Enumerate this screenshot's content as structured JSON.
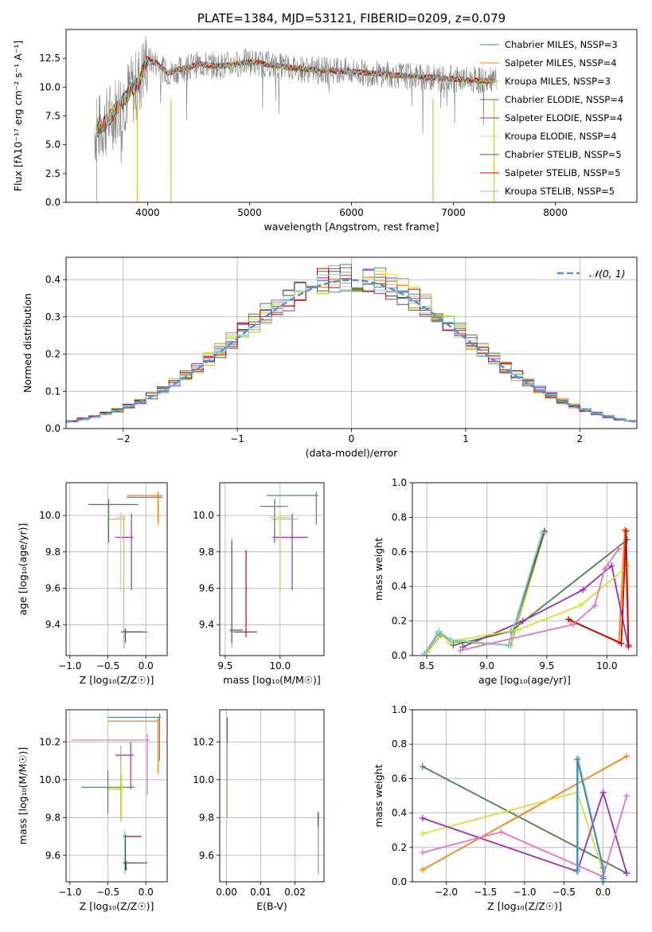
{
  "legend_colors": {
    "Chabrier MILES": "#4a7fb0",
    "Salpeter MILES": "#ff7f0e",
    "Kroupa MILES": "#bcbd22",
    "Chabrier ELODIE": "#4f7f4f",
    "Salpeter ELODIE": "#9b30b0",
    "Kroupa ELODIE": "#d6e040",
    "Chabrier STELIB": "#555555",
    "Salpeter STELIB": "#cc0000",
    "Kroupa STELIB": "#7fd3d3",
    "gauss": "#5b8fd6"
  },
  "chart_data": [
    {
      "id": "spectrum",
      "type": "line",
      "title": "PLATE=1384, MJD=53121, FIBERID=0209, z=0.079",
      "xlabel": "wavelength [Angstrom, rest frame]",
      "ylabel": "Flux [fλ10⁻¹⁷ erg cm⁻² s⁻¹ A⁻¹]",
      "xlim": [
        3200,
        8800
      ],
      "ylim": [
        0,
        15
      ],
      "xticks": [
        "4000",
        "5000",
        "6000",
        "7000",
        "8000"
      ],
      "yticks": [
        "0.0",
        "2.5",
        "5.0",
        "7.5",
        "10.0",
        "12.5"
      ],
      "legend_position": "top-right",
      "legend": [
        {
          "label": "Chabrier MILES, NSSP=3",
          "key": "Chabrier MILES"
        },
        {
          "label": "Salpeter MILES, NSSP=4",
          "key": "Salpeter MILES"
        },
        {
          "label": "Kroupa MILES, NSSP=3",
          "key": "Kroupa MILES"
        },
        {
          "label": "Chabrier ELODIE, NSSP=4",
          "key": "Chabrier ELODIE"
        },
        {
          "label": "Salpeter ELODIE, NSSP=4",
          "key": "Salpeter ELODIE"
        },
        {
          "label": "Kroupa ELODIE, NSSP=4",
          "key": "Kroupa ELODIE"
        },
        {
          "label": "Chabrier STELIB, NSSP=5",
          "key": "Chabrier STELIB"
        },
        {
          "label": "Salpeter STELIB, NSSP=5",
          "key": "Salpeter STELIB"
        },
        {
          "label": "Kroupa STELIB, NSSP=5",
          "key": "Kroupa STELIB"
        }
      ],
      "data_x": [
        3500,
        3600,
        3700,
        3800,
        3900,
        4000,
        4100,
        4200,
        4300,
        4500,
        4700,
        5000,
        5300,
        5600,
        5900,
        6200,
        6500,
        6800,
        7000,
        7200,
        7400
      ],
      "data_y": [
        6.2,
        7.0,
        8.2,
        9.3,
        10.2,
        12.4,
        12.0,
        11.2,
        11.5,
        12.0,
        11.8,
        12.2,
        11.8,
        11.5,
        11.4,
        11.2,
        11.0,
        10.8,
        10.7,
        10.6,
        10.5
      ]
    },
    {
      "id": "residuals",
      "type": "line",
      "xlabel": "(data-model)/error",
      "ylabel": "Normed distribution",
      "xlim": [
        -2.5,
        2.5
      ],
      "ylim": [
        0,
        0.46
      ],
      "xticks": [
        "−2",
        "−1",
        "0",
        "1",
        "2"
      ],
      "yticks": [
        "0.0",
        "0.1",
        "0.2",
        "0.3",
        "0.4"
      ],
      "legend_position": "top-right",
      "legend": [
        {
          "label": "𝒩(0, 1)",
          "key": "gauss"
        }
      ],
      "gauss_mean": 0,
      "gauss_sigma": 1
    },
    {
      "id": "age_vs_Z",
      "type": "scatter",
      "xlabel": "Z [log₁₀(Z/Z☉)]",
      "ylabel": "age [log₁₀(age/yr)]",
      "xlim": [
        -1.05,
        0.28
      ],
      "ylim": [
        9.23,
        10.18
      ],
      "xticks": [
        "−1.0",
        "−0.5",
        "0.0"
      ],
      "yticks": [
        "9.4",
        "9.6",
        "9.8",
        "10.0"
      ],
      "points": [
        {
          "key": "Chabrier MILES",
          "x": 0.16,
          "y": 10.1,
          "xlo": -0.25,
          "xhi": 0.22,
          "ylo": 9.97,
          "yhi": 10.13
        },
        {
          "key": "Chabrier MILES",
          "x": -0.29,
          "y": 9.36,
          "xlo": -0.32,
          "xhi": -0.25,
          "ylo": 9.27,
          "yhi": 9.37
        },
        {
          "key": "Salpeter MILES",
          "x": 0.16,
          "y": 10.11,
          "xlo": -0.25,
          "xhi": 0.22,
          "ylo": 9.95,
          "yhi": 10.13
        },
        {
          "key": "Kroupa MILES",
          "x": -0.29,
          "y": 9.98,
          "xlo": -0.5,
          "xhi": -0.27,
          "ylo": 9.58,
          "yhi": 10.0
        },
        {
          "key": "Chabrier ELODIE",
          "x": -0.49,
          "y": 10.06,
          "xlo": -0.76,
          "xhi": -0.1,
          "ylo": 9.85,
          "yhi": 10.09
        },
        {
          "key": "Salpeter ELODIE",
          "x": -0.19,
          "y": 9.88,
          "xlo": -0.4,
          "xhi": -0.17,
          "ylo": 9.59,
          "yhi": 10.01
        },
        {
          "key": "Kroupa ELODIE",
          "x": -0.33,
          "y": 9.99,
          "xlo": -0.37,
          "xhi": -0.29,
          "ylo": 9.58,
          "yhi": 10.02
        },
        {
          "key": "Salpeter STELIB",
          "x": -0.29,
          "y": 9.36,
          "xlo": -0.33,
          "xhi": -0.05,
          "ylo": 9.33,
          "yhi": 9.37
        },
        {
          "key": "Kroupa STELIB",
          "x": -0.29,
          "y": 9.36,
          "xlo": -0.31,
          "xhi": -0.27,
          "ylo": 9.27,
          "yhi": 9.88
        },
        {
          "key": "Chabrier STELIB",
          "x": -0.27,
          "y": 9.36,
          "xlo": -0.3,
          "xhi": 0.02,
          "ylo": 9.3,
          "yhi": 9.38
        }
      ]
    },
    {
      "id": "age_vs_mass",
      "type": "scatter",
      "xlabel": "mass [log₁₀(M/M☉)]",
      "xlim": [
        9.45,
        10.4
      ],
      "ylim": [
        9.23,
        10.18
      ],
      "xticks": [
        "9.5",
        "10.0"
      ],
      "yticks": [
        "9.4",
        "9.6",
        "9.8",
        "10.0"
      ],
      "points": [
        {
          "key": "Chabrier MILES",
          "x": 10.33,
          "y": 10.11,
          "xlo": 9.88,
          "xhi": 10.35,
          "ylo": 9.95,
          "yhi": 10.13
        },
        {
          "key": "Kroupa MILES",
          "x": 10.0,
          "y": 9.98,
          "xlo": 9.92,
          "xhi": 10.16,
          "ylo": 9.58,
          "yhi": 10.0
        },
        {
          "key": "Chabrier ELODIE",
          "x": 9.95,
          "y": 10.05,
          "xlo": 9.82,
          "xhi": 10.07,
          "ylo": 9.85,
          "yhi": 10.09
        },
        {
          "key": "Salpeter ELODIE",
          "x": 10.11,
          "y": 9.88,
          "xlo": 9.93,
          "xhi": 10.25,
          "ylo": 9.59,
          "yhi": 10.01
        },
        {
          "key": "Kroupa ELODIE",
          "x": 10.0,
          "y": 9.99,
          "xlo": 9.9,
          "xhi": 10.1,
          "ylo": 9.58,
          "yhi": 10.02
        },
        {
          "key": "Salpeter STELIB",
          "x": 9.69,
          "y": 9.36,
          "xlo": 9.55,
          "xhi": 9.79,
          "ylo": 9.33,
          "yhi": 9.81
        },
        {
          "key": "Kroupa STELIB",
          "x": 9.56,
          "y": 9.36,
          "xlo": 9.54,
          "xhi": 9.58,
          "ylo": 9.27,
          "yhi": 9.88
        },
        {
          "key": "Chabrier STELIB",
          "x": 9.56,
          "y": 9.37,
          "xlo": 9.54,
          "xhi": 9.66,
          "ylo": 9.3,
          "yhi": 9.86
        }
      ]
    },
    {
      "id": "weight_vs_age",
      "type": "line",
      "xlabel": "age [log₁₀(age/yr)]",
      "ylabel": "mass weight",
      "xlim": [
        8.38,
        10.25
      ],
      "ylim": [
        0,
        1
      ],
      "xticks": [
        "8.5",
        "9.0",
        "9.5",
        "10.0"
      ],
      "yticks": [
        "0.0",
        "0.2",
        "0.4",
        "0.6",
        "0.8",
        "1.0"
      ],
      "series": [
        {
          "key": "Chabrier MILES",
          "x": [
            8.48,
            8.6,
            8.7,
            9.18,
            9.48
          ],
          "y": [
            0.01,
            0.13,
            0.09,
            0.06,
            0.72
          ]
        },
        {
          "key": "Salpeter MILES",
          "x": [
            9.7,
            10.1,
            10.15,
            10.18
          ],
          "y": [
            0.2,
            0.08,
            0.73,
            0.06
          ]
        },
        {
          "key": "Kroupa MILES",
          "x": [
            8.5,
            8.62,
            8.7,
            9.2,
            9.48
          ],
          "y": [
            0.02,
            0.12,
            0.08,
            0.06,
            0.71
          ]
        },
        {
          "key": "Chabrier ELODIE",
          "x": [
            8.72,
            9.2,
            10.17
          ],
          "y": [
            0.06,
            0.14,
            0.67
          ]
        },
        {
          "key": "Salpeter ELODIE",
          "x": [
            8.8,
            9.3,
            9.8,
            10.04,
            10.18
          ],
          "y": [
            0.05,
            0.2,
            0.38,
            0.52,
            0.05
          ]
        },
        {
          "key": "Kroupa ELODIE",
          "x": [
            8.68,
            9.26,
            9.78,
            10.18
          ],
          "y": [
            0.08,
            0.15,
            0.29,
            0.52
          ]
        },
        {
          "key": "Chabrier STELIB",
          "x": [
            8.48,
            8.6,
            8.7,
            9.18,
            9.48
          ],
          "y": [
            0.01,
            0.14,
            0.09,
            0.06,
            0.72
          ]
        },
        {
          "key": "Salpeter STELIB",
          "x": [
            9.68,
            10.12,
            10.16,
            10.18
          ],
          "y": [
            0.21,
            0.07,
            0.72,
            0.06
          ]
        },
        {
          "key": "Kroupa STELIB",
          "x": [
            8.48,
            8.6,
            8.7,
            9.18,
            9.46
          ],
          "y": [
            0.01,
            0.14,
            0.09,
            0.06,
            0.71
          ]
        },
        {
          "key": "Pink",
          "x": [
            8.78,
            9.72,
            9.9,
            9.98,
            10.1
          ],
          "y": [
            0.03,
            0.18,
            0.29,
            0.5,
            0.62
          ]
        }
      ]
    },
    {
      "id": "mass_vs_Z",
      "type": "scatter",
      "xlabel": "Z [log₁₀(Z/Z☉)]",
      "ylabel": "mass [log₁₀(M/M☉)]",
      "xlim": [
        -1.05,
        0.28
      ],
      "ylim": [
        9.46,
        10.37
      ],
      "xticks": [
        "−1.0",
        "−0.5",
        "0.0"
      ],
      "yticks": [
        "9.6",
        "9.8",
        "10.0",
        "10.2"
      ],
      "points": [
        {
          "key": "Chabrier MILES",
          "x": 0.18,
          "y": 10.33,
          "xlo": -0.5,
          "xhi": 0.2,
          "ylo": 10.1,
          "yhi": 10.35
        },
        {
          "key": "Salpeter MILES",
          "x": 0.16,
          "y": 10.31,
          "xlo": -0.5,
          "xhi": 0.18,
          "ylo": 10.03,
          "yhi": 10.33
        },
        {
          "key": "Kroupa MILES",
          "x": -0.33,
          "y": 9.95,
          "xlo": -0.5,
          "xhi": -0.3,
          "ylo": 9.78,
          "yhi": 10.18
        },
        {
          "key": "Chabrier ELODIE",
          "x": -0.5,
          "y": 9.96,
          "xlo": -0.85,
          "xhi": -0.15,
          "ylo": 9.82,
          "yhi": 10.05
        },
        {
          "key": "Salpeter ELODIE",
          "x": -0.2,
          "y": 10.13,
          "xlo": -0.4,
          "xhi": -0.16,
          "ylo": 9.95,
          "yhi": 10.2
        },
        {
          "key": "Pink",
          "x": 0.02,
          "y": 10.21,
          "xlo": -0.98,
          "xhi": 0.05,
          "ylo": 9.92,
          "yhi": 10.24
        },
        {
          "key": "Kroupa ELODIE",
          "x": -0.32,
          "y": 9.97,
          "xlo": -0.36,
          "xhi": -0.3,
          "ylo": 9.8,
          "yhi": 10.03
        },
        {
          "key": "Salpeter STELIB",
          "x": -0.27,
          "y": 9.7,
          "xlo": -0.3,
          "xhi": -0.06,
          "ylo": 9.52,
          "yhi": 9.71
        },
        {
          "key": "Kroupa STELIB",
          "x": -0.28,
          "y": 9.56,
          "xlo": -0.3,
          "xhi": -0.05,
          "ylo": 9.5,
          "yhi": 9.73
        },
        {
          "key": "Chabrier STELIB",
          "x": -0.26,
          "y": 9.56,
          "xlo": -0.3,
          "xhi": 0.02,
          "ylo": 9.52,
          "yhi": 9.57
        }
      ]
    },
    {
      "id": "mass_vs_EBV",
      "type": "scatter",
      "xlabel": "E(B-V)",
      "xlim": [
        -0.002,
        0.0285
      ],
      "ylim": [
        9.46,
        10.37
      ],
      "xticks": [
        "0.00",
        "0.01",
        "0.02"
      ],
      "yticks": [
        "9.6",
        "9.8",
        "10.0",
        "10.2"
      ],
      "points": [
        {
          "key": "Salpeter ELODIE",
          "x": 0.0002,
          "y": 10.2,
          "xlo": 0.0,
          "xhi": 0.0004,
          "ylo": 10.0,
          "yhi": 10.33
        },
        {
          "key": "Kroupa MILES",
          "x": 0.0002,
          "y": 9.98,
          "xlo": 0.0,
          "xhi": 0.0004,
          "ylo": 9.8,
          "yhi": 10.2
        },
        {
          "key": "Salpeter STELIB",
          "x": 0.0268,
          "y": 9.7,
          "xlo": 0.0266,
          "xhi": 0.027,
          "ylo": 9.5,
          "yhi": 9.83
        },
        {
          "key": "Kroupa STELIB",
          "x": 0.0268,
          "y": 9.56,
          "xlo": 0.0266,
          "xhi": 0.027,
          "ylo": 9.5,
          "yhi": 9.75
        }
      ]
    },
    {
      "id": "weight_vs_Z",
      "type": "line",
      "xlabel": "Z [log₁₀(Z/Z☉)]",
      "ylabel": "mass weight",
      "xlim": [
        -2.43,
        0.43
      ],
      "ylim": [
        0,
        1
      ],
      "xticks": [
        "−2.0",
        "−1.5",
        "−1.0",
        "−0.5",
        "0.0"
      ],
      "yticks": [
        "0.0",
        "0.2",
        "0.4",
        "0.6",
        "0.8",
        "1.0"
      ],
      "series": [
        {
          "key": "Chabrier ELODIE",
          "x": [
            -2.3,
            0.3
          ],
          "y": [
            0.67,
            0.05
          ]
        },
        {
          "key": "Salpeter MILES",
          "x": [
            -2.3,
            0.3
          ],
          "y": [
            0.07,
            0.73
          ]
        },
        {
          "key": "Kroupa ELODIE",
          "x": [
            -2.3,
            -0.33,
            0.0
          ],
          "y": [
            0.28,
            0.52,
            0.06
          ]
        },
        {
          "key": "Salpeter ELODIE",
          "x": [
            -2.3,
            -0.33,
            0.0,
            0.3
          ],
          "y": [
            0.37,
            0.06,
            0.52,
            0.05
          ]
        },
        {
          "key": "Pink",
          "x": [
            -2.3,
            -1.3,
            0.0,
            0.3
          ],
          "y": [
            0.17,
            0.29,
            0.03,
            0.5
          ]
        },
        {
          "key": "Kroupa STELIB",
          "x": [
            -0.32,
            -0.32,
            0.0,
            0.0
          ],
          "y": [
            0.06,
            0.72,
            0.09,
            0.01
          ]
        },
        {
          "key": "Chabrier MILES",
          "x": [
            -0.33,
            -0.33,
            0.0,
            0.0
          ],
          "y": [
            0.07,
            0.71,
            0.08,
            0.02
          ]
        }
      ]
    }
  ]
}
